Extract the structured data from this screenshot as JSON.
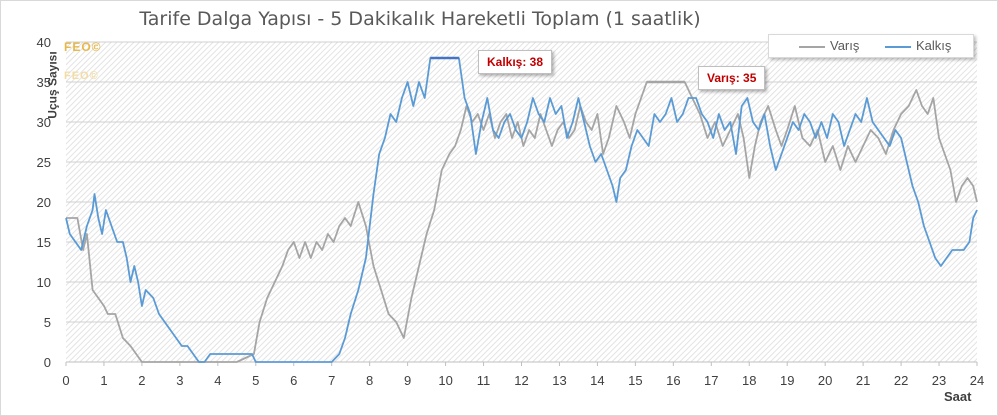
{
  "chart_data": {
    "type": "line",
    "title": "Tarife Dalga Yapısı - 5 Dakikalık Hareketli Toplam (1 saatlik)",
    "xlabel": "Saat",
    "ylabel": "Uçuş Sayısı",
    "xlim": [
      0,
      24
    ],
    "ylim": [
      0,
      40
    ],
    "x_ticks": [
      "0",
      "1",
      "2",
      "3",
      "4",
      "5",
      "6",
      "7",
      "8",
      "9",
      "10",
      "11",
      "12",
      "13",
      "14",
      "15",
      "16",
      "17",
      "18",
      "19",
      "20",
      "21",
      "22",
      "23",
      "24"
    ],
    "y_ticks": [
      "0",
      "5",
      "10",
      "15",
      "20",
      "25",
      "30",
      "35",
      "40"
    ],
    "grid": "horizontal",
    "legend_position": "top-right",
    "series": [
      {
        "name": "Varış",
        "color": "#a5a5a5",
        "points": [
          [
            0,
            18
          ],
          [
            0.3,
            18
          ],
          [
            0.45,
            14
          ],
          [
            0.55,
            16
          ],
          [
            0.7,
            9
          ],
          [
            0.85,
            8
          ],
          [
            1.0,
            7
          ],
          [
            1.1,
            6
          ],
          [
            1.3,
            6
          ],
          [
            1.5,
            3
          ],
          [
            1.7,
            2
          ],
          [
            1.85,
            1
          ],
          [
            2.0,
            0
          ],
          [
            2.5,
            0
          ],
          [
            3.0,
            0
          ],
          [
            3.5,
            0
          ],
          [
            4.0,
            0
          ],
          [
            4.5,
            0
          ],
          [
            4.95,
            1
          ],
          [
            5.1,
            5
          ],
          [
            5.3,
            8
          ],
          [
            5.5,
            10
          ],
          [
            5.7,
            12
          ],
          [
            5.85,
            14
          ],
          [
            6.0,
            15
          ],
          [
            6.15,
            13
          ],
          [
            6.3,
            15
          ],
          [
            6.45,
            13
          ],
          [
            6.6,
            15
          ],
          [
            6.75,
            14
          ],
          [
            6.9,
            16
          ],
          [
            7.05,
            15
          ],
          [
            7.2,
            17
          ],
          [
            7.35,
            18
          ],
          [
            7.5,
            17
          ],
          [
            7.7,
            20
          ],
          [
            7.9,
            17
          ],
          [
            8.1,
            12
          ],
          [
            8.3,
            9
          ],
          [
            8.5,
            6
          ],
          [
            8.7,
            5
          ],
          [
            8.9,
            3
          ],
          [
            9.1,
            8
          ],
          [
            9.3,
            12
          ],
          [
            9.5,
            16
          ],
          [
            9.7,
            19
          ],
          [
            9.9,
            24
          ],
          [
            10.1,
            26
          ],
          [
            10.25,
            27
          ],
          [
            10.4,
            29
          ],
          [
            10.55,
            32
          ],
          [
            10.7,
            30
          ],
          [
            10.85,
            31
          ],
          [
            11.0,
            29
          ],
          [
            11.15,
            31
          ],
          [
            11.3,
            28
          ],
          [
            11.45,
            30
          ],
          [
            11.6,
            31
          ],
          [
            11.75,
            28
          ],
          [
            11.9,
            30
          ],
          [
            12.05,
            27
          ],
          [
            12.2,
            29
          ],
          [
            12.35,
            28
          ],
          [
            12.5,
            31
          ],
          [
            12.65,
            29
          ],
          [
            12.8,
            27
          ],
          [
            12.95,
            29
          ],
          [
            13.1,
            30
          ],
          [
            13.25,
            28
          ],
          [
            13.4,
            29
          ],
          [
            13.55,
            32
          ],
          [
            13.7,
            30
          ],
          [
            13.85,
            29
          ],
          [
            14.0,
            31
          ],
          [
            14.15,
            26
          ],
          [
            14.3,
            28
          ],
          [
            14.5,
            32
          ],
          [
            14.7,
            30
          ],
          [
            14.85,
            28
          ],
          [
            15.0,
            31
          ],
          [
            15.15,
            33
          ],
          [
            15.3,
            35
          ],
          [
            15.6,
            35
          ],
          [
            16.0,
            35
          ],
          [
            16.3,
            35
          ],
          [
            16.5,
            33
          ],
          [
            16.7,
            31
          ],
          [
            16.9,
            28
          ],
          [
            17.1,
            30
          ],
          [
            17.3,
            27
          ],
          [
            17.5,
            29
          ],
          [
            17.7,
            31
          ],
          [
            17.85,
            28
          ],
          [
            18.0,
            23
          ],
          [
            18.15,
            27
          ],
          [
            18.3,
            30
          ],
          [
            18.5,
            32
          ],
          [
            18.7,
            29
          ],
          [
            18.85,
            27
          ],
          [
            19.0,
            29
          ],
          [
            19.2,
            32
          ],
          [
            19.4,
            28
          ],
          [
            19.6,
            27
          ],
          [
            19.8,
            29
          ],
          [
            20.0,
            25
          ],
          [
            20.2,
            27
          ],
          [
            20.4,
            24
          ],
          [
            20.6,
            27
          ],
          [
            20.8,
            25
          ],
          [
            21.0,
            27
          ],
          [
            21.2,
            29
          ],
          [
            21.4,
            28
          ],
          [
            21.6,
            26
          ],
          [
            21.8,
            29
          ],
          [
            22.0,
            31
          ],
          [
            22.2,
            32
          ],
          [
            22.4,
            34
          ],
          [
            22.55,
            32
          ],
          [
            22.7,
            31
          ],
          [
            22.85,
            33
          ],
          [
            23.0,
            28
          ],
          [
            23.15,
            26
          ],
          [
            23.3,
            24
          ],
          [
            23.45,
            20
          ],
          [
            23.6,
            22
          ],
          [
            23.75,
            23
          ],
          [
            23.9,
            22
          ],
          [
            24.0,
            20
          ]
        ]
      },
      {
        "name": "Kalkış",
        "color": "#5b9bd5",
        "points": [
          [
            0,
            18
          ],
          [
            0.1,
            16
          ],
          [
            0.25,
            15
          ],
          [
            0.4,
            14
          ],
          [
            0.55,
            17
          ],
          [
            0.7,
            19
          ],
          [
            0.75,
            21
          ],
          [
            0.85,
            18
          ],
          [
            0.95,
            16
          ],
          [
            1.05,
            19
          ],
          [
            1.2,
            17
          ],
          [
            1.35,
            15
          ],
          [
            1.5,
            15
          ],
          [
            1.6,
            13
          ],
          [
            1.7,
            10
          ],
          [
            1.8,
            12
          ],
          [
            1.9,
            10
          ],
          [
            2.0,
            7
          ],
          [
            2.1,
            9
          ],
          [
            2.3,
            8
          ],
          [
            2.45,
            6
          ],
          [
            2.6,
            5
          ],
          [
            2.75,
            4
          ],
          [
            2.9,
            3
          ],
          [
            3.05,
            2
          ],
          [
            3.2,
            2
          ],
          [
            3.35,
            1
          ],
          [
            3.5,
            0
          ],
          [
            3.65,
            0
          ],
          [
            3.8,
            1
          ],
          [
            4.0,
            1
          ],
          [
            4.5,
            1
          ],
          [
            4.9,
            1
          ],
          [
            5.0,
            0
          ],
          [
            5.5,
            0
          ],
          [
            6.0,
            0
          ],
          [
            6.5,
            0
          ],
          [
            7.0,
            0
          ],
          [
            7.2,
            1
          ],
          [
            7.35,
            3
          ],
          [
            7.5,
            6
          ],
          [
            7.7,
            9
          ],
          [
            7.9,
            13
          ],
          [
            8.1,
            21
          ],
          [
            8.25,
            26
          ],
          [
            8.4,
            28
          ],
          [
            8.55,
            31
          ],
          [
            8.7,
            30
          ],
          [
            8.85,
            33
          ],
          [
            9.0,
            35
          ],
          [
            9.15,
            32
          ],
          [
            9.3,
            35
          ],
          [
            9.45,
            33
          ],
          [
            9.6,
            38
          ],
          [
            10.0,
            38
          ],
          [
            10.35,
            38
          ],
          [
            10.5,
            33
          ],
          [
            10.65,
            31
          ],
          [
            10.8,
            26
          ],
          [
            10.95,
            30
          ],
          [
            11.1,
            33
          ],
          [
            11.25,
            29
          ],
          [
            11.4,
            28
          ],
          [
            11.55,
            30
          ],
          [
            11.7,
            31
          ],
          [
            11.85,
            29
          ],
          [
            12.0,
            28
          ],
          [
            12.15,
            30
          ],
          [
            12.3,
            33
          ],
          [
            12.45,
            31
          ],
          [
            12.6,
            30
          ],
          [
            12.75,
            33
          ],
          [
            12.9,
            31
          ],
          [
            13.05,
            32
          ],
          [
            13.2,
            28
          ],
          [
            13.35,
            30
          ],
          [
            13.5,
            33
          ],
          [
            13.65,
            30
          ],
          [
            13.8,
            27
          ],
          [
            13.95,
            25
          ],
          [
            14.1,
            26
          ],
          [
            14.25,
            24
          ],
          [
            14.4,
            22
          ],
          [
            14.5,
            20
          ],
          [
            14.6,
            23
          ],
          [
            14.75,
            24
          ],
          [
            14.9,
            27
          ],
          [
            15.05,
            29
          ],
          [
            15.2,
            28
          ],
          [
            15.35,
            27
          ],
          [
            15.5,
            31
          ],
          [
            15.65,
            30
          ],
          [
            15.8,
            31
          ],
          [
            15.95,
            33
          ],
          [
            16.1,
            30
          ],
          [
            16.25,
            31
          ],
          [
            16.4,
            33
          ],
          [
            16.6,
            33
          ],
          [
            16.75,
            31
          ],
          [
            16.9,
            30
          ],
          [
            17.05,
            28
          ],
          [
            17.2,
            31
          ],
          [
            17.35,
            29
          ],
          [
            17.5,
            30
          ],
          [
            17.65,
            26
          ],
          [
            17.8,
            32
          ],
          [
            17.95,
            33
          ],
          [
            18.1,
            30
          ],
          [
            18.25,
            29
          ],
          [
            18.4,
            31
          ],
          [
            18.55,
            27
          ],
          [
            18.7,
            24
          ],
          [
            18.85,
            26
          ],
          [
            19.0,
            28
          ],
          [
            19.15,
            30
          ],
          [
            19.3,
            29
          ],
          [
            19.45,
            31
          ],
          [
            19.6,
            30
          ],
          [
            19.75,
            28
          ],
          [
            19.9,
            30
          ],
          [
            20.05,
            28
          ],
          [
            20.2,
            31
          ],
          [
            20.35,
            30
          ],
          [
            20.5,
            27
          ],
          [
            20.65,
            29
          ],
          [
            20.8,
            31
          ],
          [
            20.95,
            30
          ],
          [
            21.1,
            33
          ],
          [
            21.25,
            30
          ],
          [
            21.4,
            29
          ],
          [
            21.55,
            28
          ],
          [
            21.7,
            27
          ],
          [
            21.85,
            29
          ],
          [
            22.0,
            28
          ],
          [
            22.15,
            25
          ],
          [
            22.3,
            22
          ],
          [
            22.45,
            20
          ],
          [
            22.6,
            17
          ],
          [
            22.75,
            15
          ],
          [
            22.9,
            13
          ],
          [
            23.05,
            12
          ],
          [
            23.2,
            13
          ],
          [
            23.35,
            14
          ],
          [
            23.5,
            14
          ],
          [
            23.65,
            14
          ],
          [
            23.8,
            15
          ],
          [
            23.9,
            18
          ],
          [
            24.0,
            19
          ]
        ]
      }
    ],
    "annotations": [
      {
        "series": "Kalkış",
        "text": "Kalkış: 38",
        "x_start": 9.6,
        "x_end": 10.35,
        "y": 38
      },
      {
        "series": "Varış",
        "text": "Varış: 35",
        "x_start": 15.3,
        "x_end": 16.3,
        "y": 35
      }
    ]
  },
  "watermark": [
    "FEO©",
    "FEO©"
  ],
  "colors": {
    "arrivals": "#a5a5a5",
    "departures": "#5b9bd5",
    "highlight": "#4472c4",
    "callout_text": "#c00000"
  }
}
